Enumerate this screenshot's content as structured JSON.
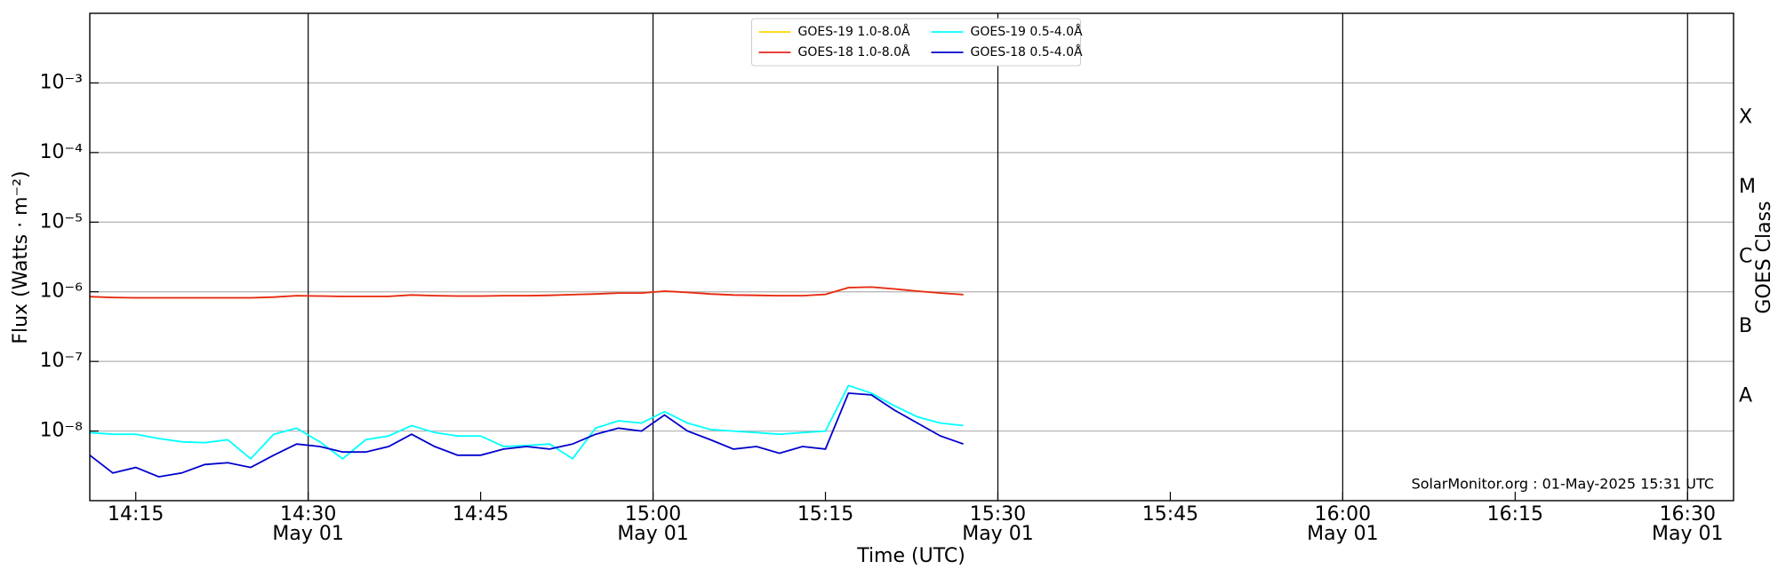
{
  "chart_data": {
    "type": "line",
    "y_label": "Flux (Watts · m⁻²)",
    "x_label": "Time (UTC)",
    "y2_label": "GOES Class",
    "annotation": "SolarMonitor.org : 01-May-2025 15:31 UTC",
    "log_y": true,
    "grid": true,
    "legend": "upper center",
    "xlim": [
      "14:11",
      "16:34"
    ],
    "ylim": [
      1e-09,
      0.01
    ],
    "yticks": [
      {
        "value": 1e-08,
        "label": "10⁻⁸"
      },
      {
        "value": 1e-07,
        "label": "10⁻⁷"
      },
      {
        "value": 1e-06,
        "label": "10⁻⁶"
      },
      {
        "value": 1e-05,
        "label": "10⁻⁵"
      },
      {
        "value": 0.0001,
        "label": "10⁻⁴"
      },
      {
        "value": 0.001,
        "label": "10⁻³"
      }
    ],
    "y2lim": [
      1e-09,
      0.01
    ],
    "y2ticks": [
      {
        "value": 3.16e-08,
        "label": "A"
      },
      {
        "value": 3.16e-07,
        "label": "B"
      },
      {
        "value": 3.16e-06,
        "label": "C"
      },
      {
        "value": 3.16e-05,
        "label": "M"
      },
      {
        "value": 0.000316,
        "label": "X"
      }
    ],
    "xticks": [
      {
        "value": "14:15",
        "label": "14:15"
      },
      {
        "value": "14:30",
        "label": "14:30",
        "date": "May 01"
      },
      {
        "value": "14:45",
        "label": "14:45"
      },
      {
        "value": "15:00",
        "label": "15:00",
        "date": "May 01"
      },
      {
        "value": "15:15",
        "label": "15:15"
      },
      {
        "value": "15:30",
        "label": "15:30",
        "date": "May 01"
      },
      {
        "value": "15:45",
        "label": "15:45"
      },
      {
        "value": "16:00",
        "label": "16:00",
        "date": "May 01"
      },
      {
        "value": "16:15",
        "label": "16:15"
      },
      {
        "value": "16:30",
        "label": "16:30",
        "date": "May 01"
      }
    ],
    "x": [
      "14:11",
      "14:13",
      "14:15",
      "14:17",
      "14:19",
      "14:21",
      "14:23",
      "14:25",
      "14:27",
      "14:29",
      "14:31",
      "14:33",
      "14:35",
      "14:37",
      "14:39",
      "14:41",
      "14:43",
      "14:45",
      "14:47",
      "14:49",
      "14:51",
      "14:53",
      "14:55",
      "14:57",
      "14:59",
      "15:01",
      "15:03",
      "15:05",
      "15:07",
      "15:09",
      "15:11",
      "15:13",
      "15:15",
      "15:17",
      "15:19",
      "15:21",
      "15:23",
      "15:25",
      "15:27"
    ],
    "series": [
      {
        "name": "GOES-19 1.0-8.0Å",
        "color": "#ffd700",
        "values": [
          8.5e-07,
          8.3e-07,
          8.2e-07,
          8.2e-07,
          8.2e-07,
          8.2e-07,
          8.2e-07,
          8.2e-07,
          8.4e-07,
          8.8e-07,
          8.7e-07,
          8.6e-07,
          8.6e-07,
          8.6e-07,
          9e-07,
          8.8e-07,
          8.7e-07,
          8.7e-07,
          8.8e-07,
          8.8e-07,
          8.9e-07,
          9.1e-07,
          9.3e-07,
          9.6e-07,
          9.6e-07,
          1.02e-06,
          9.8e-07,
          9.3e-07,
          9e-07,
          8.9e-07,
          8.8e-07,
          8.8e-07,
          9.2e-07,
          1.15e-06,
          1.17e-06,
          1.1e-06,
          1.02e-06,
          9.6e-07,
          9.1e-07
        ]
      },
      {
        "name": "GOES-18 1.0-8.0Å",
        "color": "#e8261c",
        "values": [
          8.5e-07,
          8.3e-07,
          8.2e-07,
          8.2e-07,
          8.2e-07,
          8.2e-07,
          8.2e-07,
          8.2e-07,
          8.4e-07,
          8.8e-07,
          8.7e-07,
          8.6e-07,
          8.6e-07,
          8.6e-07,
          9e-07,
          8.8e-07,
          8.7e-07,
          8.7e-07,
          8.8e-07,
          8.8e-07,
          8.9e-07,
          9.1e-07,
          9.3e-07,
          9.6e-07,
          9.6e-07,
          1.02e-06,
          9.8e-07,
          9.3e-07,
          9e-07,
          8.9e-07,
          8.8e-07,
          8.8e-07,
          9.2e-07,
          1.15e-06,
          1.17e-06,
          1.1e-06,
          1.02e-06,
          9.6e-07,
          9.1e-07
        ]
      },
      {
        "name": "GOES-19 0.5-4.0Å",
        "color": "#00ffff",
        "values": [
          9.5e-09,
          9e-09,
          9e-09,
          7.8e-09,
          7e-09,
          6.8e-09,
          7.5e-09,
          4e-09,
          9e-09,
          1.1e-08,
          7e-09,
          4e-09,
          7.5e-09,
          8.5e-09,
          1.2e-08,
          9.5e-09,
          8.5e-09,
          8.5e-09,
          6e-09,
          6.2e-09,
          6.5e-09,
          4e-09,
          1.1e-08,
          1.4e-08,
          1.3e-08,
          1.9e-08,
          1.3e-08,
          1.05e-08,
          1e-08,
          9.5e-09,
          9e-09,
          9.5e-09,
          1e-08,
          4.5e-08,
          3.5e-08,
          2.3e-08,
          1.6e-08,
          1.3e-08,
          1.2e-08
        ]
      },
      {
        "name": "GOES-18 0.5-4.0Å",
        "color": "#0000cd",
        "values": [
          4.5e-09,
          2.5e-09,
          3e-09,
          2.2e-09,
          2.5e-09,
          3.3e-09,
          3.5e-09,
          3e-09,
          4.5e-09,
          6.5e-09,
          6e-09,
          5e-09,
          5e-09,
          6e-09,
          9e-09,
          6e-09,
          4.5e-09,
          4.5e-09,
          5.5e-09,
          6e-09,
          5.5e-09,
          6.5e-09,
          9e-09,
          1.1e-08,
          1e-08,
          1.7e-08,
          1e-08,
          7.5e-09,
          5.5e-09,
          6e-09,
          4.8e-09,
          6e-09,
          5.5e-09,
          3.5e-08,
          3.3e-08,
          2e-08,
          1.3e-08,
          8.5e-09,
          6.5e-09
        ]
      }
    ]
  }
}
